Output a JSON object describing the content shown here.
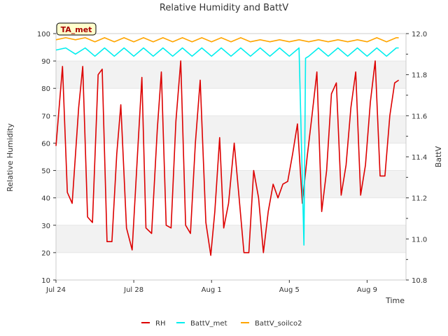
{
  "chart_data": {
    "type": "line",
    "title": "Relative Humidity and BattV",
    "xlabel": "Time",
    "ylabel_left": "Relative Humidity",
    "ylabel_right": "BattV",
    "badge": "TA_met",
    "xlim": [
      "2023-07-24",
      "2023-08-11"
    ],
    "ylim_left": [
      10,
      100
    ],
    "ylim_right": [
      10.8,
      12.0
    ],
    "x_ticks": [
      {
        "date": "2023-07-24",
        "label": "Jul 24"
      },
      {
        "date": "2023-07-28",
        "label": "Jul 28"
      },
      {
        "date": "2023-08-01",
        "label": "Aug 1"
      },
      {
        "date": "2023-08-05",
        "label": "Aug 5"
      },
      {
        "date": "2023-08-09",
        "label": "Aug 9"
      }
    ],
    "y_ticks_left": [
      10,
      20,
      30,
      40,
      50,
      60,
      70,
      80,
      90,
      100
    ],
    "y_ticks_right": [
      10.8,
      11.0,
      11.2,
      11.4,
      11.6,
      11.8,
      12.0
    ],
    "grid": "horizontal bands",
    "legend_position": "bottom",
    "colors": {
      "rh": "#dd0000",
      "batt_met": "#00eeee",
      "batt_soilco2": "#ffa500",
      "band": "#f2f2f2",
      "badge_fill": "#ffffcc",
      "badge_text": "#aa0000"
    },
    "series": [
      {
        "name": "RH",
        "axis": "left",
        "x": [
          "2023-07-24 00:00",
          "2023-07-24 08:00",
          "2023-07-24 14:00",
          "2023-07-24 20:00",
          "2023-07-25 04:00",
          "2023-07-25 09:00",
          "2023-07-25 15:00",
          "2023-07-25 21:00",
          "2023-07-26 04:00",
          "2023-07-26 09:00",
          "2023-07-26 15:00",
          "2023-07-26 21:00",
          "2023-07-27 03:00",
          "2023-07-27 08:00",
          "2023-07-27 15:00",
          "2023-07-27 22:00",
          "2023-07-28 05:00",
          "2023-07-28 10:00",
          "2023-07-28 15:00",
          "2023-07-28 22:00",
          "2023-07-29 05:00",
          "2023-07-29 10:00",
          "2023-07-29 16:00",
          "2023-07-29 22:00",
          "2023-07-30 04:00",
          "2023-07-30 10:00",
          "2023-07-30 16:00",
          "2023-07-30 22:00",
          "2023-07-31 04:00",
          "2023-07-31 10:00",
          "2023-07-31 17:00",
          "2023-07-31 23:00",
          "2023-08-01 04:00",
          "2023-08-01 10:00",
          "2023-08-01 15:00",
          "2023-08-01 21:00",
          "2023-08-02 04:00",
          "2023-08-02 10:00",
          "2023-08-02 16:00",
          "2023-08-02 22:00",
          "2023-08-03 04:00",
          "2023-08-03 10:00",
          "2023-08-03 16:00",
          "2023-08-03 22:00",
          "2023-08-04 04:00",
          "2023-08-04 10:00",
          "2023-08-04 16:00",
          "2023-08-04 22:00",
          "2023-08-05 04:00",
          "2023-08-05 10:00",
          "2023-08-05 16:00",
          "2023-08-05 22:00",
          "2023-08-06 04:00",
          "2023-08-06 10:00",
          "2023-08-06 16:00",
          "2023-08-06 22:00",
          "2023-08-07 04:00",
          "2023-08-07 10:00",
          "2023-08-07 16:00",
          "2023-08-07 22:00",
          "2023-08-08 04:00",
          "2023-08-08 10:00",
          "2023-08-08 16:00",
          "2023-08-08 22:00",
          "2023-08-09 04:00",
          "2023-08-09 10:00",
          "2023-08-09 16:00",
          "2023-08-09 22:00",
          "2023-08-10 04:00",
          "2023-08-10 10:00",
          "2023-08-10 15:00"
        ],
        "values": [
          59,
          88,
          42,
          38,
          73,
          88,
          33,
          31,
          85,
          87,
          24,
          24,
          56,
          74,
          29,
          21,
          58,
          84,
          29,
          27,
          65,
          86,
          30,
          29,
          68,
          90,
          30,
          27,
          60,
          83,
          31,
          19,
          35,
          62,
          29,
          38,
          60,
          40,
          20,
          20,
          50,
          40,
          20,
          35,
          45,
          40,
          45,
          46,
          56,
          67,
          38,
          55,
          70,
          86,
          35,
          50,
          78,
          82,
          41,
          52,
          73,
          86,
          41,
          52,
          75,
          90,
          48,
          48,
          70,
          82,
          83
        ]
      },
      {
        "name": "BattV_met",
        "axis": "right",
        "x": [
          "2023-07-24 00:00",
          "2023-07-24 12:00",
          "2023-07-25 00:00",
          "2023-07-25 12:00",
          "2023-07-26 00:00",
          "2023-07-26 12:00",
          "2023-07-27 00:00",
          "2023-07-27 12:00",
          "2023-07-28 00:00",
          "2023-07-28 12:00",
          "2023-07-29 00:00",
          "2023-07-29 12:00",
          "2023-07-30 00:00",
          "2023-07-30 12:00",
          "2023-07-31 00:00",
          "2023-07-31 12:00",
          "2023-08-01 00:00",
          "2023-08-01 12:00",
          "2023-08-02 00:00",
          "2023-08-02 12:00",
          "2023-08-03 00:00",
          "2023-08-03 12:00",
          "2023-08-04 00:00",
          "2023-08-04 12:00",
          "2023-08-05 00:00",
          "2023-08-05 12:00",
          "2023-08-05 18:00",
          "2023-08-05 20:00",
          "2023-08-06 00:00",
          "2023-08-06 12:00",
          "2023-08-07 00:00",
          "2023-08-07 12:00",
          "2023-08-08 00:00",
          "2023-08-08 12:00",
          "2023-08-09 00:00",
          "2023-08-09 12:00",
          "2023-08-10 00:00",
          "2023-08-10 12:00",
          "2023-08-10 15:00"
        ],
        "values": [
          11.92,
          11.93,
          11.9,
          11.93,
          11.89,
          11.93,
          11.89,
          11.93,
          11.89,
          11.93,
          11.89,
          11.93,
          11.89,
          11.93,
          11.89,
          11.93,
          11.89,
          11.93,
          11.89,
          11.93,
          11.89,
          11.93,
          11.89,
          11.93,
          11.89,
          11.93,
          10.97,
          11.88,
          11.89,
          11.93,
          11.89,
          11.93,
          11.89,
          11.93,
          11.89,
          11.93,
          11.89,
          11.93,
          11.93
        ]
      },
      {
        "name": "BattV_soilco2",
        "axis": "right",
        "x": [
          "2023-07-24 00:00",
          "2023-07-24 12:00",
          "2023-07-25 00:00",
          "2023-07-25 12:00",
          "2023-07-26 00:00",
          "2023-07-26 12:00",
          "2023-07-27 00:00",
          "2023-07-27 12:00",
          "2023-07-28 00:00",
          "2023-07-28 12:00",
          "2023-07-29 00:00",
          "2023-07-29 12:00",
          "2023-07-30 00:00",
          "2023-07-30 12:00",
          "2023-07-31 00:00",
          "2023-07-31 12:00",
          "2023-08-01 00:00",
          "2023-08-01 12:00",
          "2023-08-02 00:00",
          "2023-08-02 12:00",
          "2023-08-03 00:00",
          "2023-08-03 12:00",
          "2023-08-04 00:00",
          "2023-08-04 12:00",
          "2023-08-05 00:00",
          "2023-08-05 12:00",
          "2023-08-06 00:00",
          "2023-08-06 12:00",
          "2023-08-07 00:00",
          "2023-08-07 12:00",
          "2023-08-08 00:00",
          "2023-08-08 12:00",
          "2023-08-09 00:00",
          "2023-08-09 12:00",
          "2023-08-10 00:00",
          "2023-08-10 12:00",
          "2023-08-10 15:00"
        ],
        "values": [
          11.97,
          11.98,
          11.97,
          11.98,
          11.96,
          11.98,
          11.96,
          11.98,
          11.96,
          11.98,
          11.96,
          11.98,
          11.96,
          11.98,
          11.96,
          11.98,
          11.96,
          11.98,
          11.96,
          11.98,
          11.96,
          11.97,
          11.96,
          11.97,
          11.96,
          11.97,
          11.96,
          11.97,
          11.96,
          11.97,
          11.96,
          11.97,
          11.96,
          11.98,
          11.96,
          11.98,
          11.98
        ]
      }
    ]
  }
}
